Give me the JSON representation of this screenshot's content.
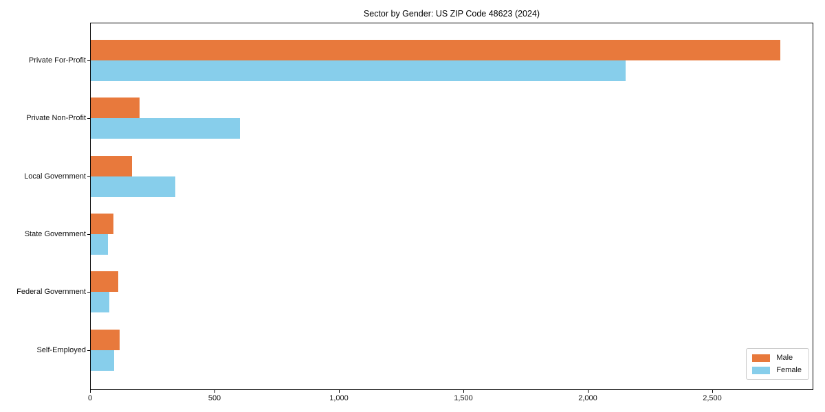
{
  "chart_data": {
    "type": "bar",
    "orientation": "horizontal",
    "title": "Sector by Gender: US ZIP Code 48623 (2024)",
    "categories": [
      "Private For-Profit",
      "Private Non-Profit",
      "Local Government",
      "State Government",
      "Federal Government",
      "Self-Employed"
    ],
    "series": [
      {
        "name": "Male",
        "color": "#E8793C",
        "values": [
          2770,
          195,
          165,
          90,
          110,
          115
        ]
      },
      {
        "name": "Female",
        "color": "#87CEEB",
        "values": [
          2150,
          600,
          340,
          70,
          75,
          95
        ]
      }
    ],
    "xlabel": "",
    "ylabel": "",
    "xlim": [
      0,
      2900
    ],
    "x_ticks": [
      0,
      500,
      1000,
      1500,
      2000,
      2500
    ],
    "x_tick_labels": [
      "0",
      "500",
      "1,000",
      "1,500",
      "2,000",
      "2,500"
    ],
    "grid": false,
    "legend": {
      "position": "lower right",
      "entries": [
        "Male",
        "Female"
      ]
    }
  }
}
